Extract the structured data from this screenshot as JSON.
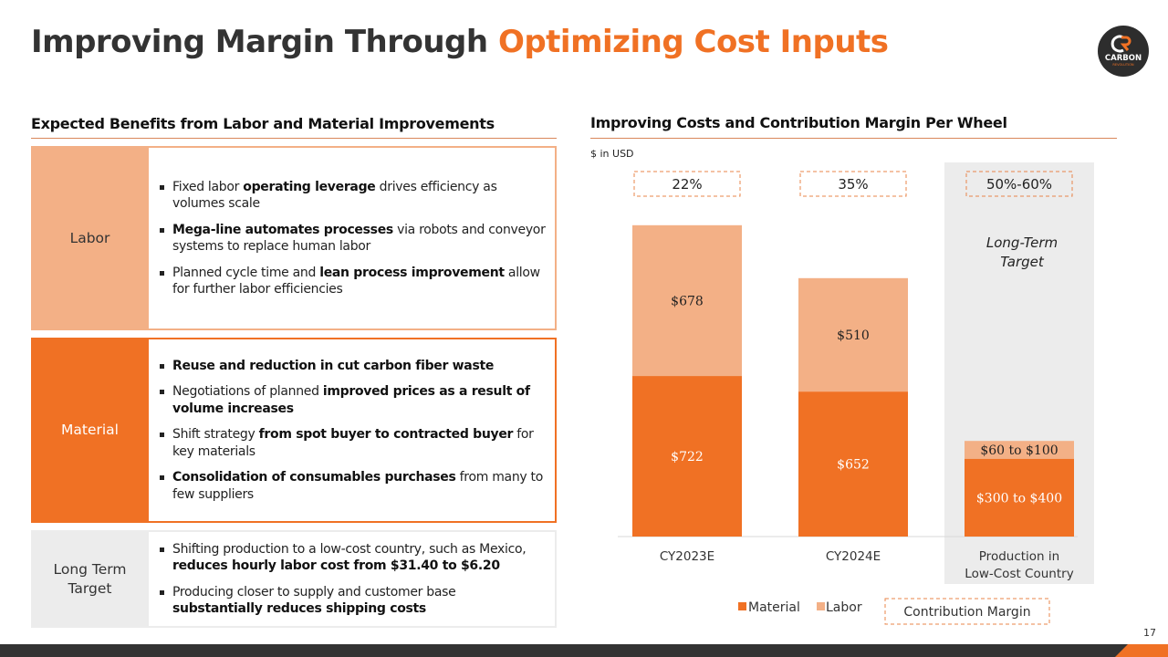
{
  "title": {
    "main": "Improving Margin Through ",
    "accent": "Optimizing Cost Inputs"
  },
  "logo": {
    "icon": "carbon-revolution-logo",
    "letters": "CR",
    "name": "CARBON",
    "tagline": "REVOLUTION"
  },
  "left": {
    "heading": "Expected Benefits from Labor and Material Improvements",
    "rows": [
      {
        "label": "Labor",
        "bullets": [
          {
            "parts": [
              {
                "t": "Fixed labor ",
                "b": false
              },
              {
                "t": "operating leverage",
                "b": true
              },
              {
                "t": " drives efficiency  as volumes scale",
                "b": false
              }
            ]
          },
          {
            "parts": [
              {
                "t": "Mega-line automates processes",
                "b": true
              },
              {
                "t": " via robots and conveyor systems to replace human labor",
                "b": false
              }
            ]
          },
          {
            "parts": [
              {
                "t": "Planned cycle time and ",
                "b": false
              },
              {
                "t": "lean process improvement",
                "b": true
              },
              {
                "t": " allow for further labor efficiencies",
                "b": false
              }
            ]
          }
        ]
      },
      {
        "label": "Material",
        "bullets": [
          {
            "parts": [
              {
                "t": "Reuse and reduction in cut carbon fiber waste",
                "b": true
              }
            ]
          },
          {
            "parts": [
              {
                "t": "Negotiations of planned ",
                "b": false
              },
              {
                "t": "improved prices as a result of volume increases",
                "b": true
              }
            ]
          },
          {
            "parts": [
              {
                "t": "Shift strategy ",
                "b": false
              },
              {
                "t": "from spot buyer to contracted buyer",
                "b": true
              },
              {
                "t": " for key materials",
                "b": false
              }
            ]
          },
          {
            "parts": [
              {
                "t": "Consolidation of consumables purchases",
                "b": true
              },
              {
                "t": " from many to few suppliers",
                "b": false
              }
            ]
          }
        ]
      },
      {
        "label": "Long Term Target",
        "bullets": [
          {
            "parts": [
              {
                "t": "Shifting production to a low-cost country, such as Mexico, ",
                "b": false
              },
              {
                "t": "reduces hourly labor cost from $31.40 to $6.20",
                "b": true
              }
            ]
          },
          {
            "parts": [
              {
                "t": "Producing closer to supply and customer base ",
                "b": false
              },
              {
                "t": "substantially reduces shipping costs",
                "b": true
              }
            ]
          }
        ]
      }
    ]
  },
  "right": {
    "heading": "Improving Costs and Contribution Margin Per Wheel",
    "unit_note": "$ in USD"
  },
  "chart_data": {
    "type": "bar",
    "stacked": true,
    "title": "Improving Costs and Contribution Margin Per Wheel",
    "ylabel": "$ in USD",
    "xlabel": "",
    "categories": [
      "CY2023E",
      "CY2024E",
      "Production in Low-Cost Country"
    ],
    "category_lines": [
      [
        "CY2023E"
      ],
      [
        "CY2024E"
      ],
      [
        "Production in",
        "Low-Cost Country"
      ]
    ],
    "series": [
      {
        "name": "Material",
        "color": "#F07124",
        "values": [
          722,
          652,
          350
        ],
        "labels": [
          "$722",
          "$652",
          "$300 to $400"
        ],
        "label_color": "#ffffff"
      },
      {
        "name": "Labor",
        "color": "#F3B086",
        "values": [
          678,
          510,
          80
        ],
        "labels": [
          "$678",
          "$510",
          "$60 to $100"
        ],
        "label_color": "#222222"
      }
    ],
    "contribution_margin": [
      "22%",
      "35%",
      "50%-60%"
    ],
    "highlight": {
      "category_index": 2,
      "text": [
        "Long-Term",
        "Target"
      ],
      "color": "#ECECEC"
    },
    "ylim": [
      0,
      1400
    ],
    "grid": false,
    "legend": {
      "position": "bottom",
      "entries": [
        {
          "name": "Material",
          "color": "#F07124",
          "style": "square"
        },
        {
          "name": "Labor",
          "color": "#F3B086",
          "style": "square"
        },
        {
          "name": "Contribution Margin",
          "color": "#F07124",
          "style": "dashed-box"
        }
      ]
    }
  },
  "footer": {
    "page_number": "17"
  },
  "colors": {
    "accent": "#F07124",
    "light_accent": "#F3B086",
    "dark": "#333333",
    "grey": "#ECECEC"
  }
}
